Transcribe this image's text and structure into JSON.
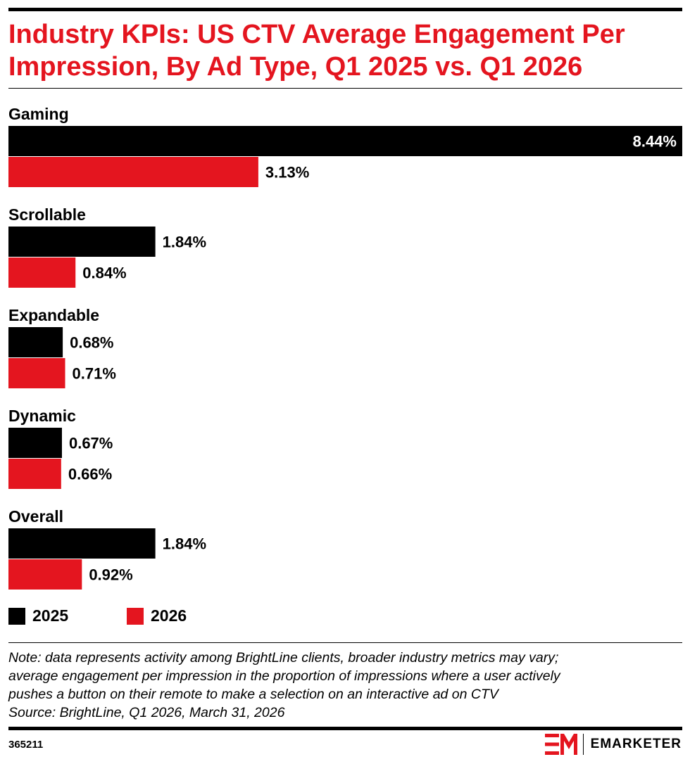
{
  "title": "Industry KPIs: US CTV Average Engagement Per Impression, By Ad Type, Q1 2025 vs. Q1 2026",
  "colors": {
    "accent": "#e4151f",
    "series_2025": "#000000",
    "series_2026": "#e4151f"
  },
  "chart_data": {
    "type": "bar",
    "orientation": "horizontal",
    "categories": [
      "Gaming",
      "Scrollable",
      "Expandable",
      "Dynamic",
      "Overall"
    ],
    "series": [
      {
        "name": "2025",
        "color": "#000000",
        "values": [
          8.44,
          1.84,
          0.68,
          0.67,
          1.84
        ],
        "labels": [
          "8.44%",
          "1.84%",
          "0.68%",
          "0.67%",
          "1.84%"
        ]
      },
      {
        "name": "2026",
        "color": "#e4151f",
        "values": [
          3.13,
          0.84,
          0.71,
          0.66,
          0.92
        ],
        "labels": [
          "3.13%",
          "0.84%",
          "0.71%",
          "0.66%",
          "0.92%"
        ]
      }
    ],
    "xlim": [
      0,
      8.44
    ],
    "grid": false,
    "legend_position": "bottom-left"
  },
  "note": {
    "lines": [
      "Note: data represents activity among BrightLine clients, broader industry metrics may vary;",
      "average engagement per impression in the proportion of impressions where a user actively",
      "pushes a button on their remote to make a selection on an interactive ad on CTV"
    ],
    "source": "Source: BrightLine, Q1 2026, March 31, 2026"
  },
  "footer": {
    "chart_id": "365211",
    "brand": "EMARKETER"
  }
}
